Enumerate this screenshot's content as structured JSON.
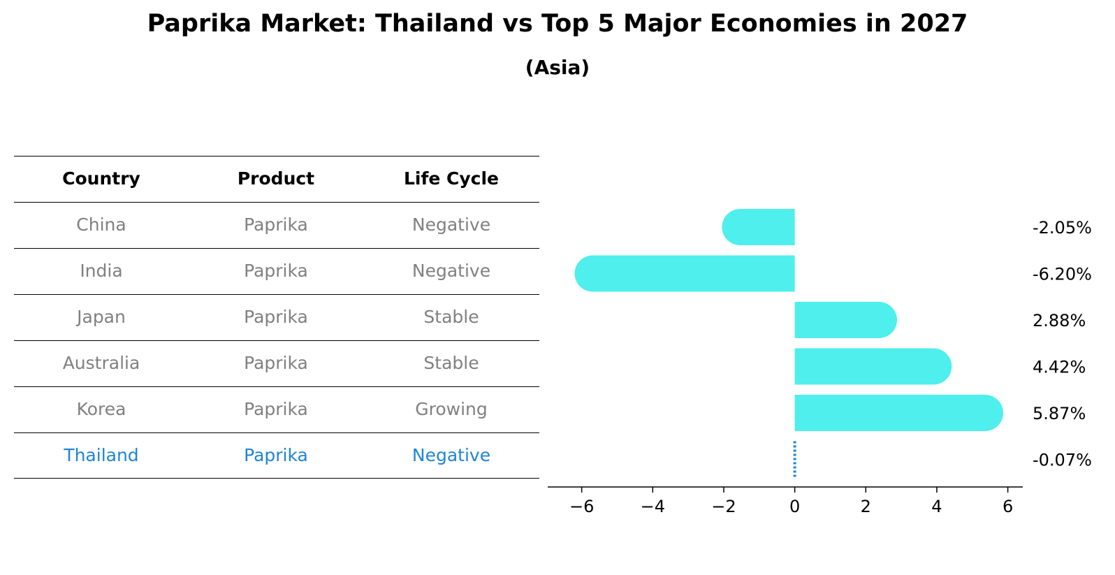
{
  "title": "Paprika Market: Thailand vs Top 5 Major Economies in 2027",
  "subtitle": "(Asia)",
  "table": {
    "headers": [
      "Country",
      "Product",
      "Life Cycle"
    ],
    "rows": [
      [
        "China",
        "Paprika",
        "Negative"
      ],
      [
        "India",
        "Paprika",
        "Negative"
      ],
      [
        "Japan",
        "Paprika",
        "Stable"
      ],
      [
        "Australia",
        "Paprika",
        "Stable"
      ],
      [
        "Korea",
        "Paprika",
        "Growing"
      ],
      [
        "Thailand",
        "Paprika",
        "Negative"
      ]
    ],
    "highlight_row": "Thailand"
  },
  "colors": {
    "bar": "#4eefed",
    "highlight": "#1f84d6",
    "muted_text": "#808080"
  },
  "chart_data": {
    "type": "bar",
    "orientation": "horizontal",
    "categories": [
      "China",
      "India",
      "Japan",
      "Australia",
      "Korea",
      "Thailand"
    ],
    "values": [
      -2.05,
      -6.2,
      2.88,
      4.42,
      5.87,
      -0.07
    ],
    "value_labels": [
      "-2.05%",
      "-6.20%",
      "2.88%",
      "4.42%",
      "5.87%",
      "-0.07%"
    ],
    "xlim": [
      -6.8,
      6.5
    ],
    "xticks": [
      -6,
      -4,
      -2,
      0,
      2,
      4,
      6
    ],
    "xtick_labels": [
      "−6",
      "−4",
      "−2",
      "0",
      "2",
      "4",
      "6"
    ],
    "title": "Paprika Market: Thailand vs Top 5 Major Economies in 2027",
    "xlabel": "",
    "ylabel": ""
  }
}
